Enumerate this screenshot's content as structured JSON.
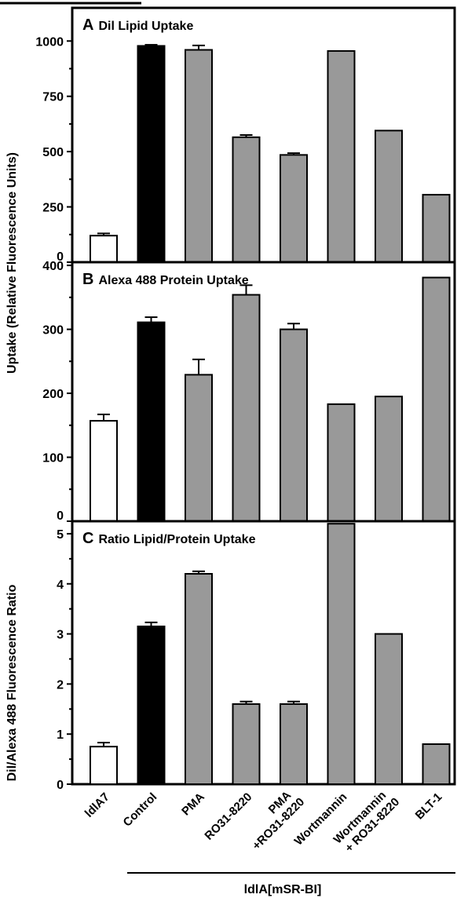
{
  "chart_data": [
    {
      "type": "bar",
      "panel_letter": "A",
      "title": "Dil Lipid Uptake",
      "ylim": [
        0,
        1150
      ],
      "yticks": [
        0,
        250,
        500,
        750,
        1000
      ],
      "categories": [
        "ldlA7",
        "Control",
        "PMA",
        "RO31-8220",
        "PMA +RO31-8220",
        "Wortmannin",
        "Wortmannin + RO31-8220",
        "BLT-1"
      ],
      "values": [
        120,
        978,
        960,
        565,
        485,
        955,
        595,
        305
      ],
      "errors": [
        10,
        5,
        20,
        10,
        8,
        0,
        0,
        0
      ],
      "fills": [
        "#ffffff",
        "#000000",
        "#999999",
        "#999999",
        "#999999",
        "#999999",
        "#999999",
        "#999999"
      ]
    },
    {
      "type": "bar",
      "panel_letter": "B",
      "title": "Alexa 488 Protein Uptake",
      "ylim": [
        0,
        405
      ],
      "yticks": [
        0,
        100,
        200,
        300,
        400
      ],
      "categories": [
        "ldlA7",
        "Control",
        "PMA",
        "RO31-8220",
        "PMA +RO31-8220",
        "Wortmannin",
        "Wortmannin + RO31-8220",
        "BLT-1"
      ],
      "values": [
        157,
        311,
        229,
        354,
        300,
        183,
        195,
        381
      ],
      "errors": [
        10,
        8,
        24,
        15,
        9,
        0,
        0,
        0
      ],
      "fills": [
        "#ffffff",
        "#000000",
        "#999999",
        "#999999",
        "#999999",
        "#999999",
        "#999999",
        "#999999"
      ]
    },
    {
      "type": "bar",
      "panel_letter": "C",
      "title": "Ratio Lipid/Protein Uptake",
      "ylim": [
        0,
        5.25
      ],
      "yticks": [
        0,
        1,
        2,
        3,
        4,
        5
      ],
      "categories": [
        "ldlA7",
        "Control",
        "PMA",
        "RO31-8220",
        "PMA +RO31-8220",
        "Wortmannin",
        "Wortmannin + RO31-8220",
        "BLT-1"
      ],
      "values": [
        0.75,
        3.15,
        4.2,
        1.6,
        1.6,
        5.2,
        3.0,
        0.8
      ],
      "errors": [
        0.08,
        0.08,
        0.05,
        0.05,
        0.05,
        0,
        0,
        0
      ],
      "fills": [
        "#ffffff",
        "#000000",
        "#999999",
        "#999999",
        "#999999",
        "#999999",
        "#999999",
        "#999999"
      ]
    }
  ],
  "axes": {
    "ylabel_ab": "Uptake (Relative Fluorescence Units)",
    "ylabel_c": "Dil/Alexa 488 Fluorescence Ratio"
  },
  "x_labels": [
    [
      "ldlA7"
    ],
    [
      "Control"
    ],
    [
      "PMA"
    ],
    [
      "RO31-8220"
    ],
    [
      "PMA",
      "+RO31-8220"
    ],
    [
      "Wortmannin"
    ],
    [
      "Wortmannin",
      "+ RO31-8220"
    ],
    [
      "BLT-1"
    ]
  ],
  "group_label": "ldlA[mSR-BI]"
}
